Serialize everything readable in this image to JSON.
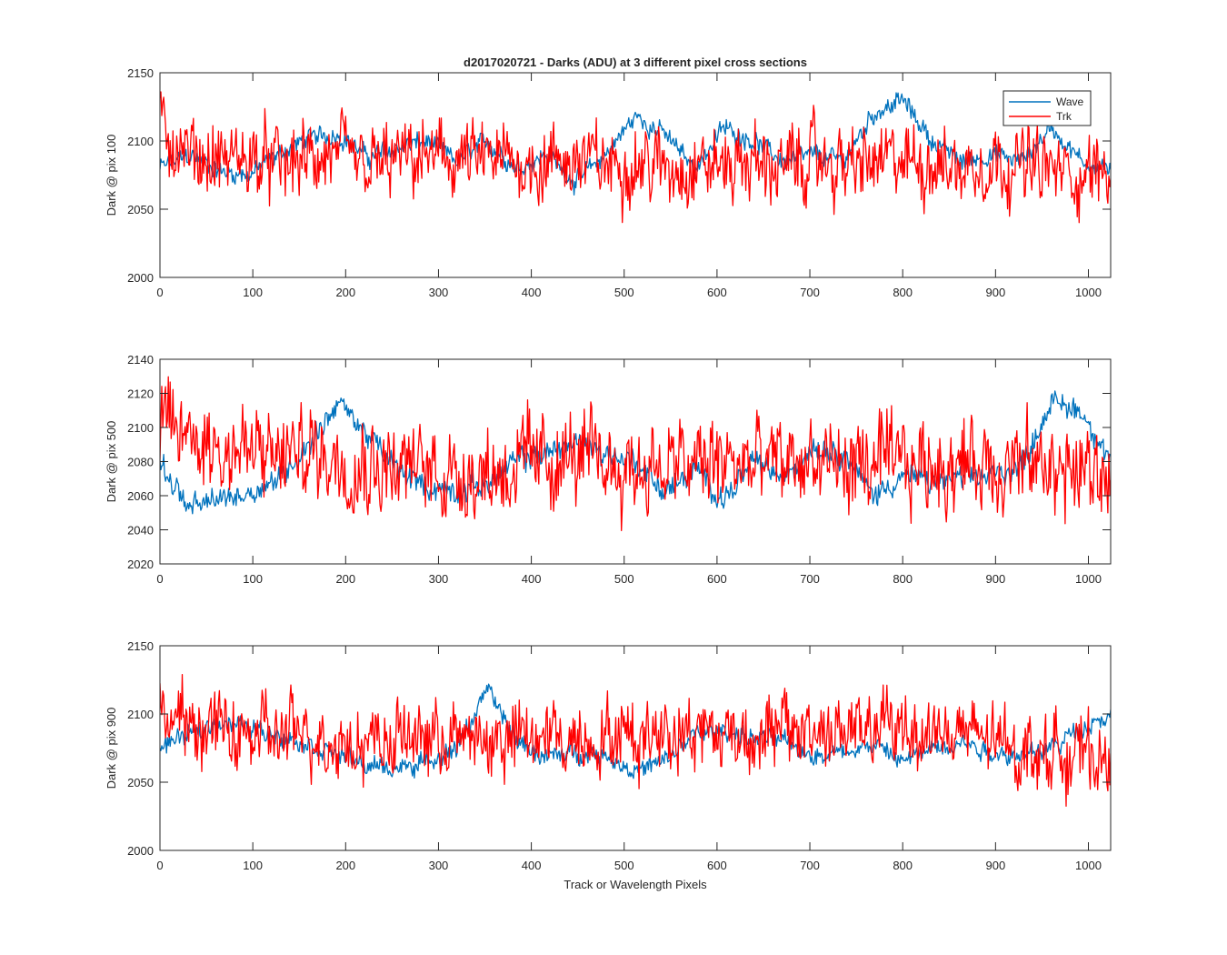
{
  "figure": {
    "title": "d2017020721 - Darks (ADU) at 3 different pixel cross sections",
    "xlabel": "Track or Wavelength Pixels"
  },
  "legend": {
    "placement": "top-right",
    "entries": [
      {
        "name": "Wave",
        "color": "#0072BD"
      },
      {
        "name": "Trk",
        "color": "#FF0000"
      }
    ]
  },
  "chart_data": [
    {
      "type": "line",
      "title": "d2017020721 - Darks (ADU) at 3 different pixel cross sections",
      "xlabel": "",
      "ylabel": "Dark @ pix 100",
      "xlim": [
        0,
        1024
      ],
      "ylim": [
        2000,
        2150
      ],
      "xticks": [
        0,
        100,
        200,
        300,
        400,
        500,
        600,
        700,
        800,
        900,
        1000
      ],
      "yticks": [
        2000,
        2050,
        2100,
        2150
      ],
      "grid": false,
      "legend": "top-right",
      "series": [
        {
          "name": "Wave",
          "color": "#0072BD",
          "x": [
            0,
            32,
            64,
            96,
            128,
            160,
            192,
            224,
            256,
            288,
            320,
            352,
            384,
            416,
            448,
            480,
            512,
            544,
            576,
            608,
            640,
            672,
            704,
            736,
            768,
            800,
            832,
            864,
            896,
            928,
            960,
            992,
            1024
          ],
          "values": [
            2080,
            2090,
            2078,
            2075,
            2090,
            2102,
            2105,
            2088,
            2095,
            2100,
            2085,
            2100,
            2080,
            2090,
            2070,
            2090,
            2118,
            2105,
            2080,
            2110,
            2100,
            2085,
            2090,
            2085,
            2120,
            2130,
            2100,
            2085,
            2090,
            2085,
            2110,
            2085,
            2080
          ]
        },
        {
          "name": "Trk",
          "color": "#FF0000",
          "x": [
            0,
            32,
            64,
            96,
            128,
            160,
            192,
            224,
            256,
            288,
            320,
            352,
            384,
            416,
            448,
            480,
            512,
            544,
            576,
            608,
            640,
            672,
            704,
            736,
            768,
            800,
            832,
            864,
            896,
            928,
            960,
            992,
            1024
          ],
          "values": [
            2110,
            2090,
            2085,
            2088,
            2082,
            2085,
            2088,
            2080,
            2085,
            2087,
            2086,
            2084,
            2085,
            2083,
            2087,
            2082,
            2085,
            2080,
            2083,
            2082,
            2085,
            2080,
            2086,
            2081,
            2083,
            2085,
            2084,
            2080,
            2086,
            2083,
            2078,
            2075,
            2080
          ]
        }
      ]
    },
    {
      "type": "line",
      "xlabel": "",
      "ylabel": "Dark @ pix 500",
      "xlim": [
        0,
        1024
      ],
      "ylim": [
        2020,
        2140
      ],
      "xticks": [
        0,
        100,
        200,
        300,
        400,
        500,
        600,
        700,
        800,
        900,
        1000
      ],
      "yticks": [
        2020,
        2040,
        2060,
        2080,
        2100,
        2120,
        2140
      ],
      "grid": false,
      "series": [
        {
          "name": "Wave",
          "color": "#0072BD",
          "x": [
            0,
            32,
            64,
            96,
            128,
            160,
            192,
            224,
            256,
            288,
            320,
            352,
            384,
            416,
            448,
            480,
            512,
            544,
            576,
            608,
            640,
            672,
            704,
            736,
            768,
            800,
            832,
            864,
            896,
            928,
            960,
            992,
            1024
          ],
          "values": [
            2080,
            2052,
            2058,
            2062,
            2070,
            2090,
            2115,
            2095,
            2075,
            2065,
            2062,
            2068,
            2080,
            2085,
            2092,
            2085,
            2080,
            2062,
            2075,
            2058,
            2080,
            2070,
            2090,
            2085,
            2060,
            2072,
            2068,
            2070,
            2072,
            2078,
            2115,
            2110,
            2080
          ]
        },
        {
          "name": "Trk",
          "color": "#FF0000",
          "x": [
            0,
            32,
            64,
            96,
            128,
            160,
            192,
            224,
            256,
            288,
            320,
            352,
            384,
            416,
            448,
            480,
            512,
            544,
            576,
            608,
            640,
            672,
            704,
            736,
            768,
            800,
            832,
            864,
            896,
            928,
            960,
            992,
            1024
          ],
          "values": [
            2100,
            2095,
            2090,
            2085,
            2082,
            2086,
            2083,
            2080,
            2078,
            2076,
            2075,
            2074,
            2078,
            2080,
            2082,
            2079,
            2077,
            2076,
            2078,
            2080,
            2077,
            2079,
            2080,
            2076,
            2078,
            2077,
            2079,
            2080,
            2078,
            2077,
            2076,
            2074,
            2070
          ]
        }
      ]
    },
    {
      "type": "line",
      "xlabel": "Track or Wavelength Pixels",
      "ylabel": "Dark @ pix 900",
      "xlim": [
        0,
        1024
      ],
      "ylim": [
        2000,
        2150
      ],
      "xticks": [
        0,
        100,
        200,
        300,
        400,
        500,
        600,
        700,
        800,
        900,
        1000
      ],
      "yticks": [
        2000,
        2050,
        2100,
        2150
      ],
      "grid": false,
      "series": [
        {
          "name": "Wave",
          "color": "#0072BD",
          "x": [
            0,
            32,
            64,
            96,
            128,
            160,
            192,
            224,
            256,
            288,
            320,
            352,
            384,
            416,
            448,
            480,
            512,
            544,
            576,
            608,
            640,
            672,
            704,
            736,
            768,
            800,
            832,
            864,
            896,
            928,
            960,
            992,
            1024
          ],
          "values": [
            2075,
            2085,
            2095,
            2090,
            2085,
            2078,
            2070,
            2062,
            2060,
            2065,
            2075,
            2118,
            2080,
            2068,
            2072,
            2070,
            2058,
            2065,
            2085,
            2088,
            2082,
            2080,
            2070,
            2072,
            2078,
            2065,
            2075,
            2080,
            2072,
            2070,
            2075,
            2090,
            2100
          ]
        },
        {
          "name": "Trk",
          "color": "#FF0000",
          "x": [
            0,
            32,
            64,
            96,
            128,
            160,
            192,
            224,
            256,
            288,
            320,
            352,
            384,
            416,
            448,
            480,
            512,
            544,
            576,
            608,
            640,
            672,
            704,
            736,
            768,
            800,
            832,
            864,
            896,
            928,
            960,
            992,
            1024
          ],
          "values": [
            2098,
            2090,
            2088,
            2085,
            2083,
            2085,
            2082,
            2080,
            2082,
            2083,
            2081,
            2080,
            2082,
            2084,
            2082,
            2085,
            2083,
            2090,
            2088,
            2086,
            2085,
            2087,
            2089,
            2086,
            2088,
            2090,
            2087,
            2085,
            2080,
            2075,
            2072,
            2070,
            2068
          ]
        }
      ]
    }
  ]
}
